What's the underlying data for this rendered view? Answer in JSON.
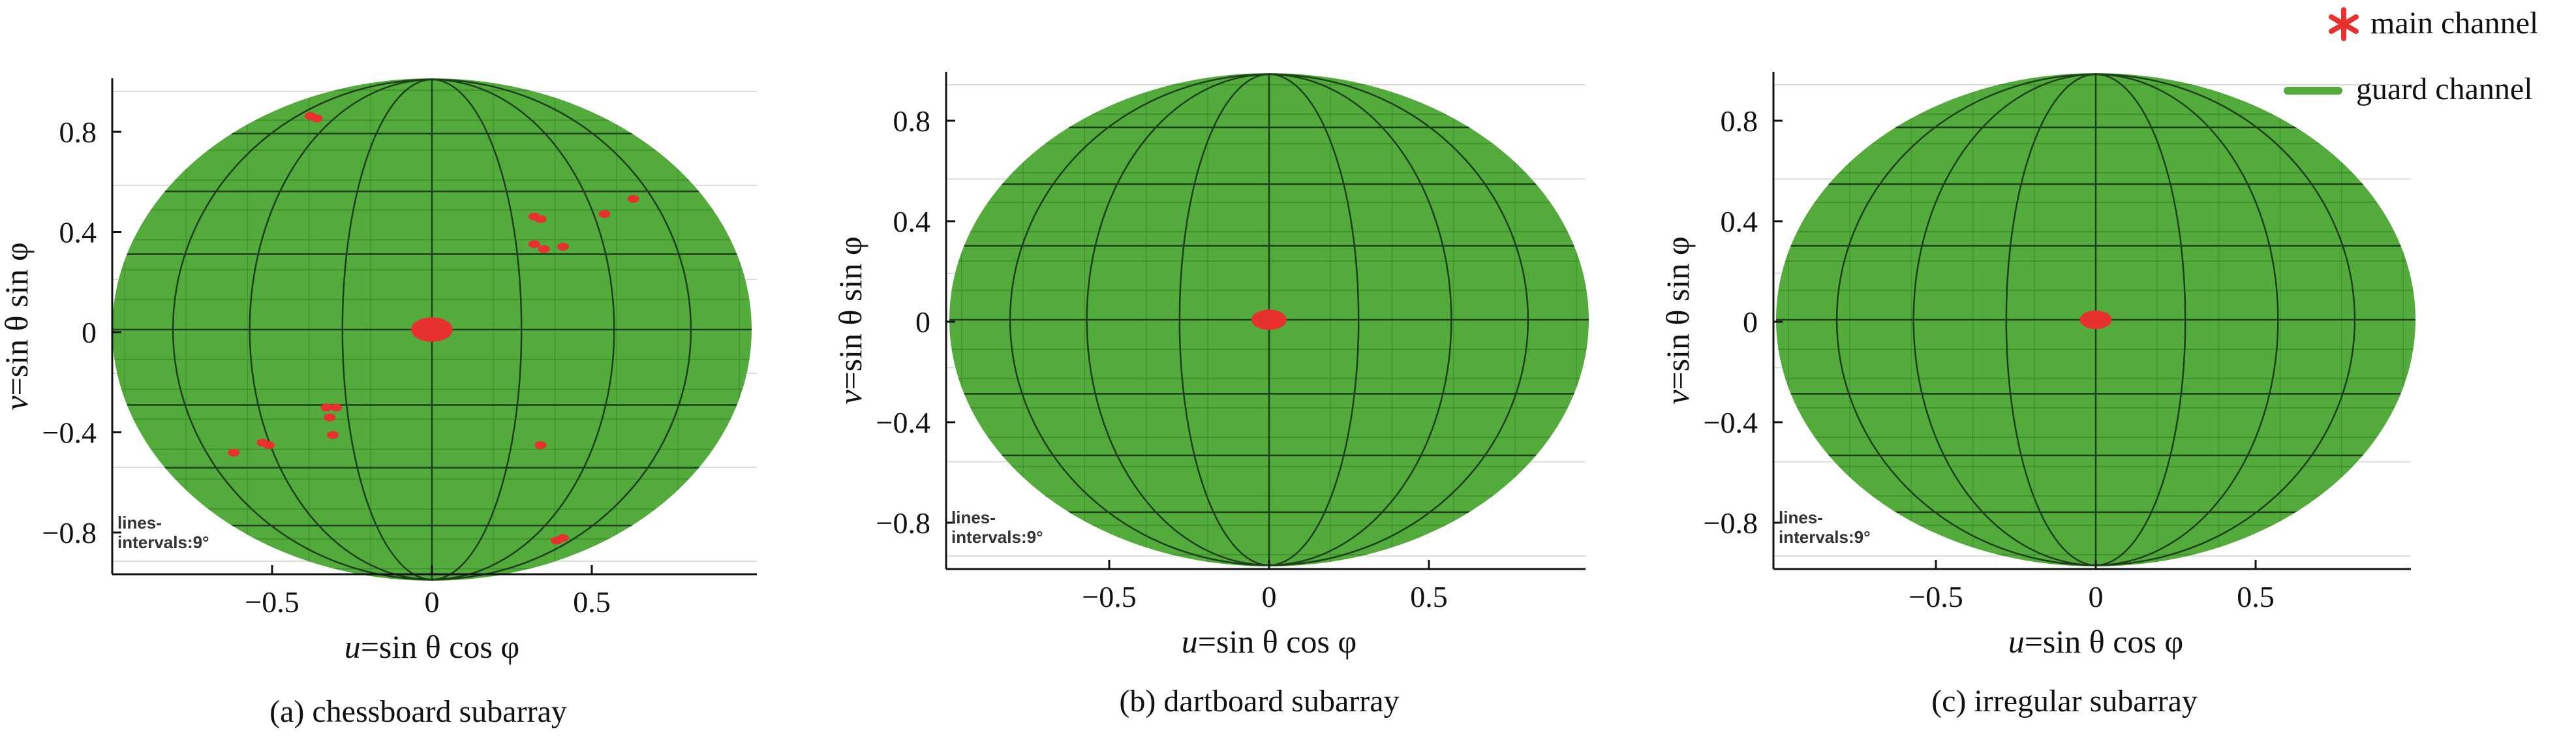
{
  "legend": {
    "placement": "top-right",
    "main_label": "main channel",
    "main_color": "#e8312f",
    "guard_label": "guard channel",
    "guard_color": "#52ab3a"
  },
  "chart_data": [
    {
      "type": "scatter",
      "caption": "(a) chessboard subarray",
      "xlabel_prefix": "u",
      "xlabel_rest": "=sin θ cos φ",
      "ylabel_prefix": "v",
      "ylabel_rest": "=sin θ sin φ",
      "xlim": [
        -1,
        1
      ],
      "ylim": [
        -1,
        1
      ],
      "xticks": [
        -0.5,
        0,
        0.5
      ],
      "xtick_labels": [
        "−0.5",
        "0",
        "0.5"
      ],
      "yticks": [
        0.8,
        0.4,
        0,
        -0.4,
        -0.8
      ],
      "ytick_labels": [
        "0.8",
        "0.4",
        "0",
        "−0.4",
        "−0.8"
      ],
      "grid": true,
      "note_line1": "lines-",
      "note_line2": "intervals:9°",
      "guard_color": "#52ab3a",
      "main_color": "#e8312f",
      "main_beam_center": [
        0,
        0
      ],
      "main_beam_halfwidth": [
        0.065,
        0.065
      ],
      "sidelobes": [
        [
          -0.38,
          0.85
        ],
        [
          -0.36,
          0.84
        ],
        [
          0.32,
          0.45
        ],
        [
          0.34,
          0.44
        ],
        [
          0.54,
          0.46
        ],
        [
          0.63,
          0.52
        ],
        [
          0.32,
          0.34
        ],
        [
          0.35,
          0.32
        ],
        [
          0.41,
          0.33
        ],
        [
          -0.33,
          -0.31
        ],
        [
          -0.3,
          -0.31
        ],
        [
          -0.32,
          -0.35
        ],
        [
          -0.31,
          -0.42
        ],
        [
          -0.53,
          -0.45
        ],
        [
          -0.51,
          -0.46
        ],
        [
          -0.62,
          -0.49
        ],
        [
          0.34,
          -0.46
        ],
        [
          0.39,
          -0.84
        ],
        [
          0.41,
          -0.83
        ]
      ]
    },
    {
      "type": "scatter",
      "caption": "(b) dartboard subarray",
      "xlabel_prefix": "u",
      "xlabel_rest": "=sin θ cos φ",
      "ylabel_prefix": "v",
      "ylabel_rest": "=sin θ sin φ",
      "xlim": [
        -1,
        1
      ],
      "ylim": [
        -1,
        1
      ],
      "xticks": [
        -0.5,
        0,
        0.5
      ],
      "xtick_labels": [
        "−0.5",
        "0",
        "0.5"
      ],
      "yticks": [
        0.8,
        0.4,
        0,
        -0.4,
        -0.8
      ],
      "ytick_labels": [
        "0.8",
        "0.4",
        "0",
        "−0.4",
        "−0.8"
      ],
      "grid": true,
      "note_line1": "lines-",
      "note_line2": "intervals:9°",
      "guard_color": "#52ab3a",
      "main_color": "#e8312f",
      "main_beam_center": [
        0,
        0
      ],
      "main_beam_halfwidth": [
        0.055,
        0.055
      ],
      "sidelobes": []
    },
    {
      "type": "scatter",
      "caption": "(c) irregular subarray",
      "xlabel_prefix": "u",
      "xlabel_rest": "=sin θ cos φ",
      "ylabel_prefix": "v",
      "ylabel_rest": "=sin θ sin φ",
      "xlim": [
        -1,
        1
      ],
      "ylim": [
        -1,
        1
      ],
      "xticks": [
        -0.5,
        0,
        0.5
      ],
      "xtick_labels": [
        "−0.5",
        "0",
        "0.5"
      ],
      "yticks": [
        0.8,
        0.4,
        0,
        -0.4,
        -0.8
      ],
      "ytick_labels": [
        "0.8",
        "0.4",
        "0",
        "−0.4",
        "−0.8"
      ],
      "grid": true,
      "note_line1": "lines-",
      "note_line2": "intervals:9°",
      "guard_color": "#52ab3a",
      "main_color": "#e8312f",
      "main_beam_center": [
        0,
        0
      ],
      "main_beam_halfwidth": [
        0.05,
        0.05
      ],
      "sidelobes": []
    }
  ]
}
